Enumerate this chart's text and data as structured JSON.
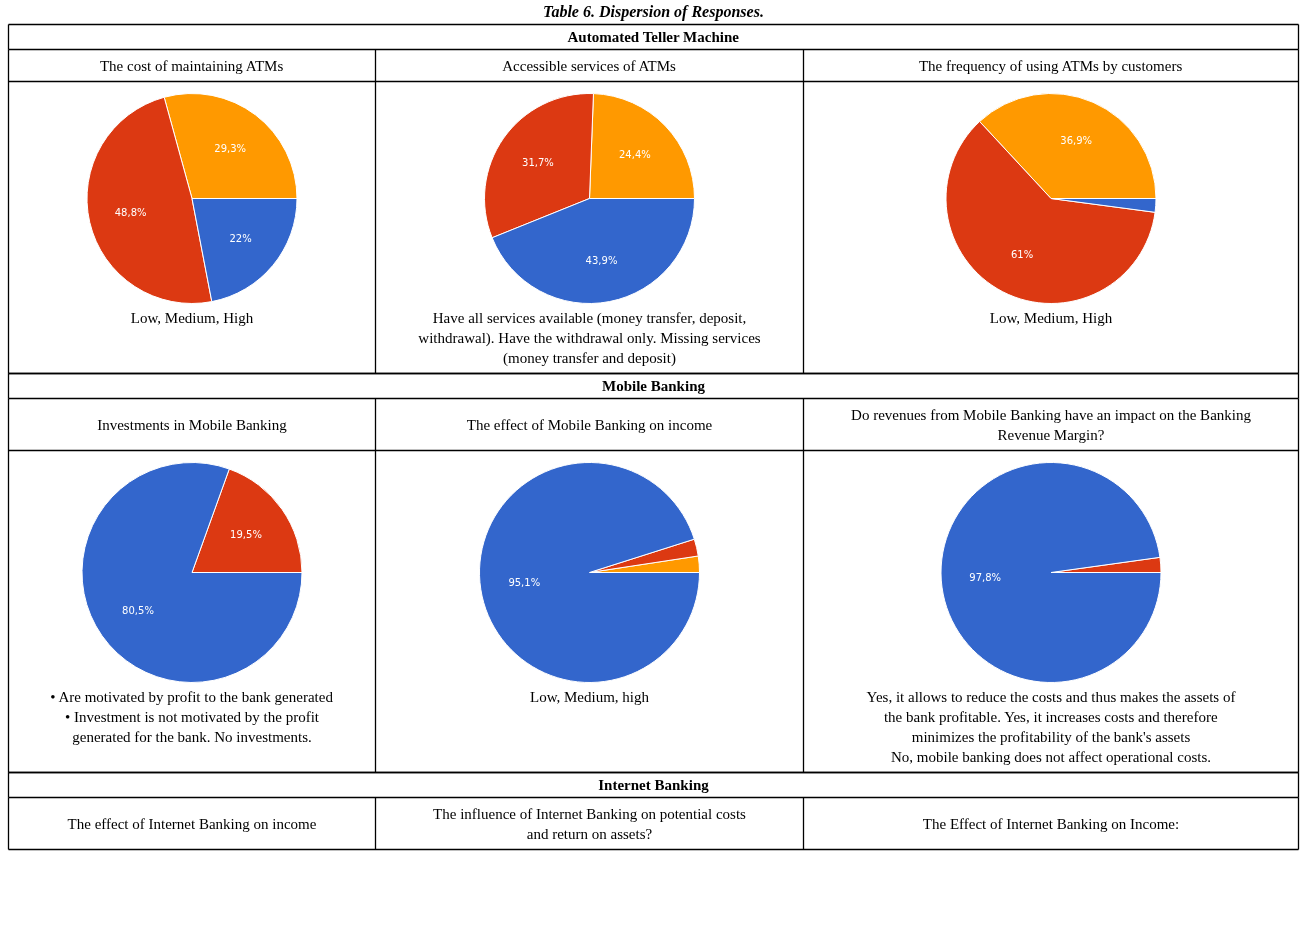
{
  "chart_data": [
    {
      "type": "other",
      "title": "Table 6. Dispersion of Responses."
    },
    {
      "type": "other",
      "title": "Automated Teller Machine"
    },
    {
      "type": "pie",
      "title": "The cost of maintaining ATMs",
      "categories": [
        null,
        null,
        null
      ],
      "values": [
        29.3,
        48.8,
        22
      ],
      "colors": [
        "#ff9900",
        "#dc3912",
        "#3366cc"
      ],
      "value_labels": [
        "29,3%",
        "48,8%",
        "22%"
      ],
      "annotations": [
        "Low, Medium, High"
      ]
    },
    {
      "type": "pie",
      "title": "Accessible services of ATMs",
      "categories": [
        null,
        null,
        null
      ],
      "values": [
        24.4,
        31.7,
        43.9
      ],
      "colors": [
        "#ff9900",
        "#dc3912",
        "#3366cc"
      ],
      "value_labels": [
        "24,4%",
        "31,7%",
        "43,9%"
      ],
      "annotations": [
        "Have all services available (money transfer, deposit, withdrawal). Have the withdrawal only. Missing services (money transfer and deposit)"
      ]
    },
    {
      "type": "pie",
      "title": "The frequency of using ATMs by customers",
      "categories": [
        null,
        null,
        null
      ],
      "values": [
        36.9,
        61,
        2.1
      ],
      "colors": [
        "#ff9900",
        "#dc3912",
        "#3366cc"
      ],
      "value_labels": [
        "36,9%",
        "61%",
        null
      ],
      "annotations": [
        "Low, Medium, High"
      ]
    },
    {
      "type": "other",
      "title": "Mobile Banking"
    },
    {
      "type": "pie",
      "title": "Investments in Mobile Banking",
      "categories": [
        null,
        null
      ],
      "values": [
        19.5,
        80.5
      ],
      "colors": [
        "#dc3912",
        "#3366cc"
      ],
      "value_labels": [
        "19,5%",
        "80,5%"
      ],
      "annotations": [
        "• Are motivated by profit to the bank generated",
        "• Investment is not motivated by the profit generated for the bank. No investments."
      ]
    },
    {
      "type": "pie",
      "title": "The effect of Mobile Banking on income",
      "categories": [
        null,
        null,
        null
      ],
      "values": [
        2.4,
        2.5,
        95.1
      ],
      "colors": [
        "#ff9900",
        "#dc3912",
        "#3366cc"
      ],
      "value_labels": [
        null,
        null,
        "95,1%"
      ],
      "annotations": [
        "Low, Medium, high"
      ]
    },
    {
      "type": "pie",
      "title": "Do revenues from Mobile Banking have an impact on the Banking Revenue Margin?",
      "categories": [
        null,
        null
      ],
      "values": [
        2.2,
        97.8
      ],
      "colors": [
        "#dc3912",
        "#3366cc"
      ],
      "value_labels": [
        null,
        "97,8%"
      ],
      "annotations": [
        "Yes, it allows to reduce the costs and thus makes the assets of the bank profitable. Yes, it increases costs and therefore minimizes the profitability of the bank's assets",
        "No, mobile banking does not affect operational costs."
      ]
    },
    {
      "type": "other",
      "title": "Internet Banking",
      "annotations": [
        "The effect of Internet Banking on income",
        "The influence of Internet Banking on potential costs and return on assets?",
        "The Effect of Internet Banking on Income:"
      ]
    }
  ]
}
